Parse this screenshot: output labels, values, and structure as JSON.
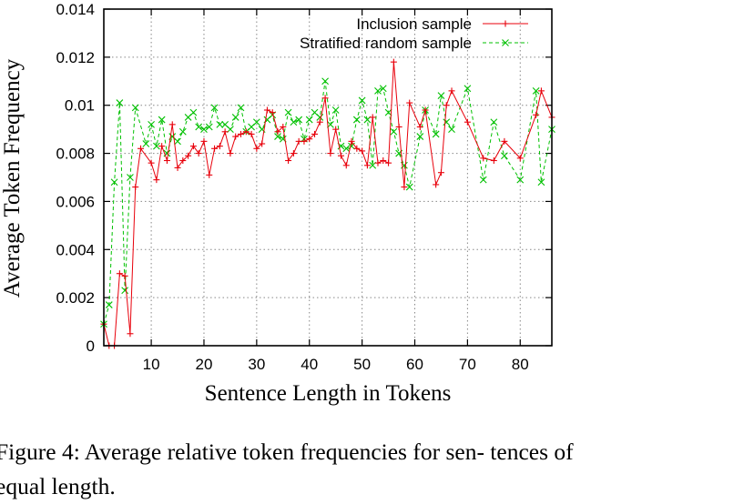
{
  "chart_data": {
    "type": "line",
    "xlabel": "Sentence Length in Tokens",
    "ylabel": "Average Token Frequency",
    "xlim": [
      1,
      86
    ],
    "ylim": [
      0,
      0.014
    ],
    "xticks": [
      10,
      20,
      30,
      40,
      50,
      60,
      70,
      80
    ],
    "yticks": [
      0,
      0.002,
      0.004,
      0.006,
      0.008,
      0.01,
      0.012,
      0.014
    ],
    "ytick_labels": [
      "0",
      "0.002",
      "0.004",
      "0.006",
      "0.008",
      "0.01",
      "0.012",
      "0.014"
    ],
    "grid": true,
    "legend_position": "top-right",
    "series": [
      {
        "name": "Inclusion sample",
        "color": "#e8000b",
        "marker": "plus",
        "line": "solid",
        "points": [
          [
            1,
            0.0009
          ],
          [
            2,
            0.0
          ],
          [
            3,
            0.0
          ],
          [
            4,
            0.003
          ],
          [
            5,
            0.0029
          ],
          [
            6,
            0.0005
          ],
          [
            7,
            0.0066
          ],
          [
            8,
            0.0082
          ],
          [
            10,
            0.0076
          ],
          [
            11,
            0.0069
          ],
          [
            12,
            0.0083
          ],
          [
            13,
            0.0077
          ],
          [
            14,
            0.0092
          ],
          [
            15,
            0.0074
          ],
          [
            16,
            0.0077
          ],
          [
            17,
            0.0079
          ],
          [
            18,
            0.0083
          ],
          [
            19,
            0.008
          ],
          [
            20,
            0.0085
          ],
          [
            21,
            0.0071
          ],
          [
            22,
            0.0082
          ],
          [
            23,
            0.0083
          ],
          [
            24,
            0.0089
          ],
          [
            25,
            0.008
          ],
          [
            26,
            0.0087
          ],
          [
            27,
            0.0088
          ],
          [
            28,
            0.0089
          ],
          [
            29,
            0.0088
          ],
          [
            30,
            0.0082
          ],
          [
            31,
            0.0084
          ],
          [
            32,
            0.0098
          ],
          [
            33,
            0.0097
          ],
          [
            34,
            0.0089
          ],
          [
            35,
            0.0091
          ],
          [
            36,
            0.0077
          ],
          [
            37,
            0.008
          ],
          [
            38,
            0.0085
          ],
          [
            39,
            0.0085
          ],
          [
            40,
            0.0086
          ],
          [
            41,
            0.0088
          ],
          [
            42,
            0.0093
          ],
          [
            43,
            0.0103
          ],
          [
            44,
            0.008
          ],
          [
            45,
            0.009
          ],
          [
            46,
            0.0079
          ],
          [
            47,
            0.0075
          ],
          [
            48,
            0.0085
          ],
          [
            49,
            0.0082
          ],
          [
            50,
            0.0081
          ],
          [
            51,
            0.0075
          ],
          [
            52,
            0.0095
          ],
          [
            53,
            0.0076
          ],
          [
            54,
            0.0077
          ],
          [
            55,
            0.0076
          ],
          [
            56,
            0.0118
          ],
          [
            57,
            0.0091
          ],
          [
            58,
            0.0066
          ],
          [
            59,
            0.0101
          ],
          [
            61,
            0.0091
          ],
          [
            62,
            0.0098
          ],
          [
            64,
            0.0067
          ],
          [
            65,
            0.0072
          ],
          [
            66,
            0.01
          ],
          [
            67,
            0.0106
          ],
          [
            70,
            0.0093
          ],
          [
            73,
            0.0078
          ],
          [
            75,
            0.0077
          ],
          [
            77,
            0.0085
          ],
          [
            80,
            0.0078
          ],
          [
            83,
            0.0096
          ],
          [
            84,
            0.0106
          ],
          [
            86,
            0.0095
          ]
        ]
      },
      {
        "name": "Stratified random sample",
        "color": "#00c000",
        "marker": "cross",
        "line": "dashed",
        "points": [
          [
            1,
            0.0009
          ],
          [
            2,
            0.0017
          ],
          [
            3,
            0.0068
          ],
          [
            4,
            0.0101
          ],
          [
            5,
            0.0023
          ],
          [
            6,
            0.007
          ],
          [
            7,
            0.0099
          ],
          [
            9,
            0.0084
          ],
          [
            10,
            0.0092
          ],
          [
            11,
            0.0083
          ],
          [
            12,
            0.0094
          ],
          [
            13,
            0.008
          ],
          [
            14,
            0.0087
          ],
          [
            15,
            0.0085
          ],
          [
            16,
            0.0089
          ],
          [
            17,
            0.0095
          ],
          [
            18,
            0.0097
          ],
          [
            19,
            0.0091
          ],
          [
            20,
            0.009
          ],
          [
            21,
            0.0091
          ],
          [
            22,
            0.0099
          ],
          [
            23,
            0.0092
          ],
          [
            24,
            0.0092
          ],
          [
            25,
            0.009
          ],
          [
            26,
            0.0095
          ],
          [
            27,
            0.0099
          ],
          [
            28,
            0.0089
          ],
          [
            29,
            0.0091
          ],
          [
            30,
            0.0093
          ],
          [
            31,
            0.009
          ],
          [
            32,
            0.0094
          ],
          [
            33,
            0.0096
          ],
          [
            34,
            0.0087
          ],
          [
            35,
            0.0086
          ],
          [
            36,
            0.0097
          ],
          [
            37,
            0.0093
          ],
          [
            38,
            0.0094
          ],
          [
            39,
            0.0086
          ],
          [
            40,
            0.0094
          ],
          [
            41,
            0.0097
          ],
          [
            42,
            0.0095
          ],
          [
            43,
            0.011
          ],
          [
            44,
            0.0092
          ],
          [
            45,
            0.0098
          ],
          [
            46,
            0.0083
          ],
          [
            47,
            0.0082
          ],
          [
            48,
            0.0083
          ],
          [
            49,
            0.0094
          ],
          [
            50,
            0.0102
          ],
          [
            51,
            0.0094
          ],
          [
            52,
            0.0075
          ],
          [
            53,
            0.0106
          ],
          [
            54,
            0.0107
          ],
          [
            55,
            0.0097
          ],
          [
            56,
            0.0089
          ],
          [
            57,
            0.008
          ],
          [
            58,
            0.0075
          ],
          [
            59,
            0.0066
          ],
          [
            61,
            0.0087
          ],
          [
            62,
            0.0098
          ],
          [
            64,
            0.0088
          ],
          [
            65,
            0.0104
          ],
          [
            66,
            0.0093
          ],
          [
            67,
            0.009
          ],
          [
            70,
            0.0107
          ],
          [
            73,
            0.0069
          ],
          [
            75,
            0.0093
          ],
          [
            77,
            0.0079
          ],
          [
            80,
            0.0069
          ],
          [
            83,
            0.0106
          ],
          [
            84,
            0.0068
          ],
          [
            86,
            0.009
          ]
        ]
      }
    ]
  },
  "caption": "Figure 4: Average relative token frequencies for sen- tences of equal length."
}
